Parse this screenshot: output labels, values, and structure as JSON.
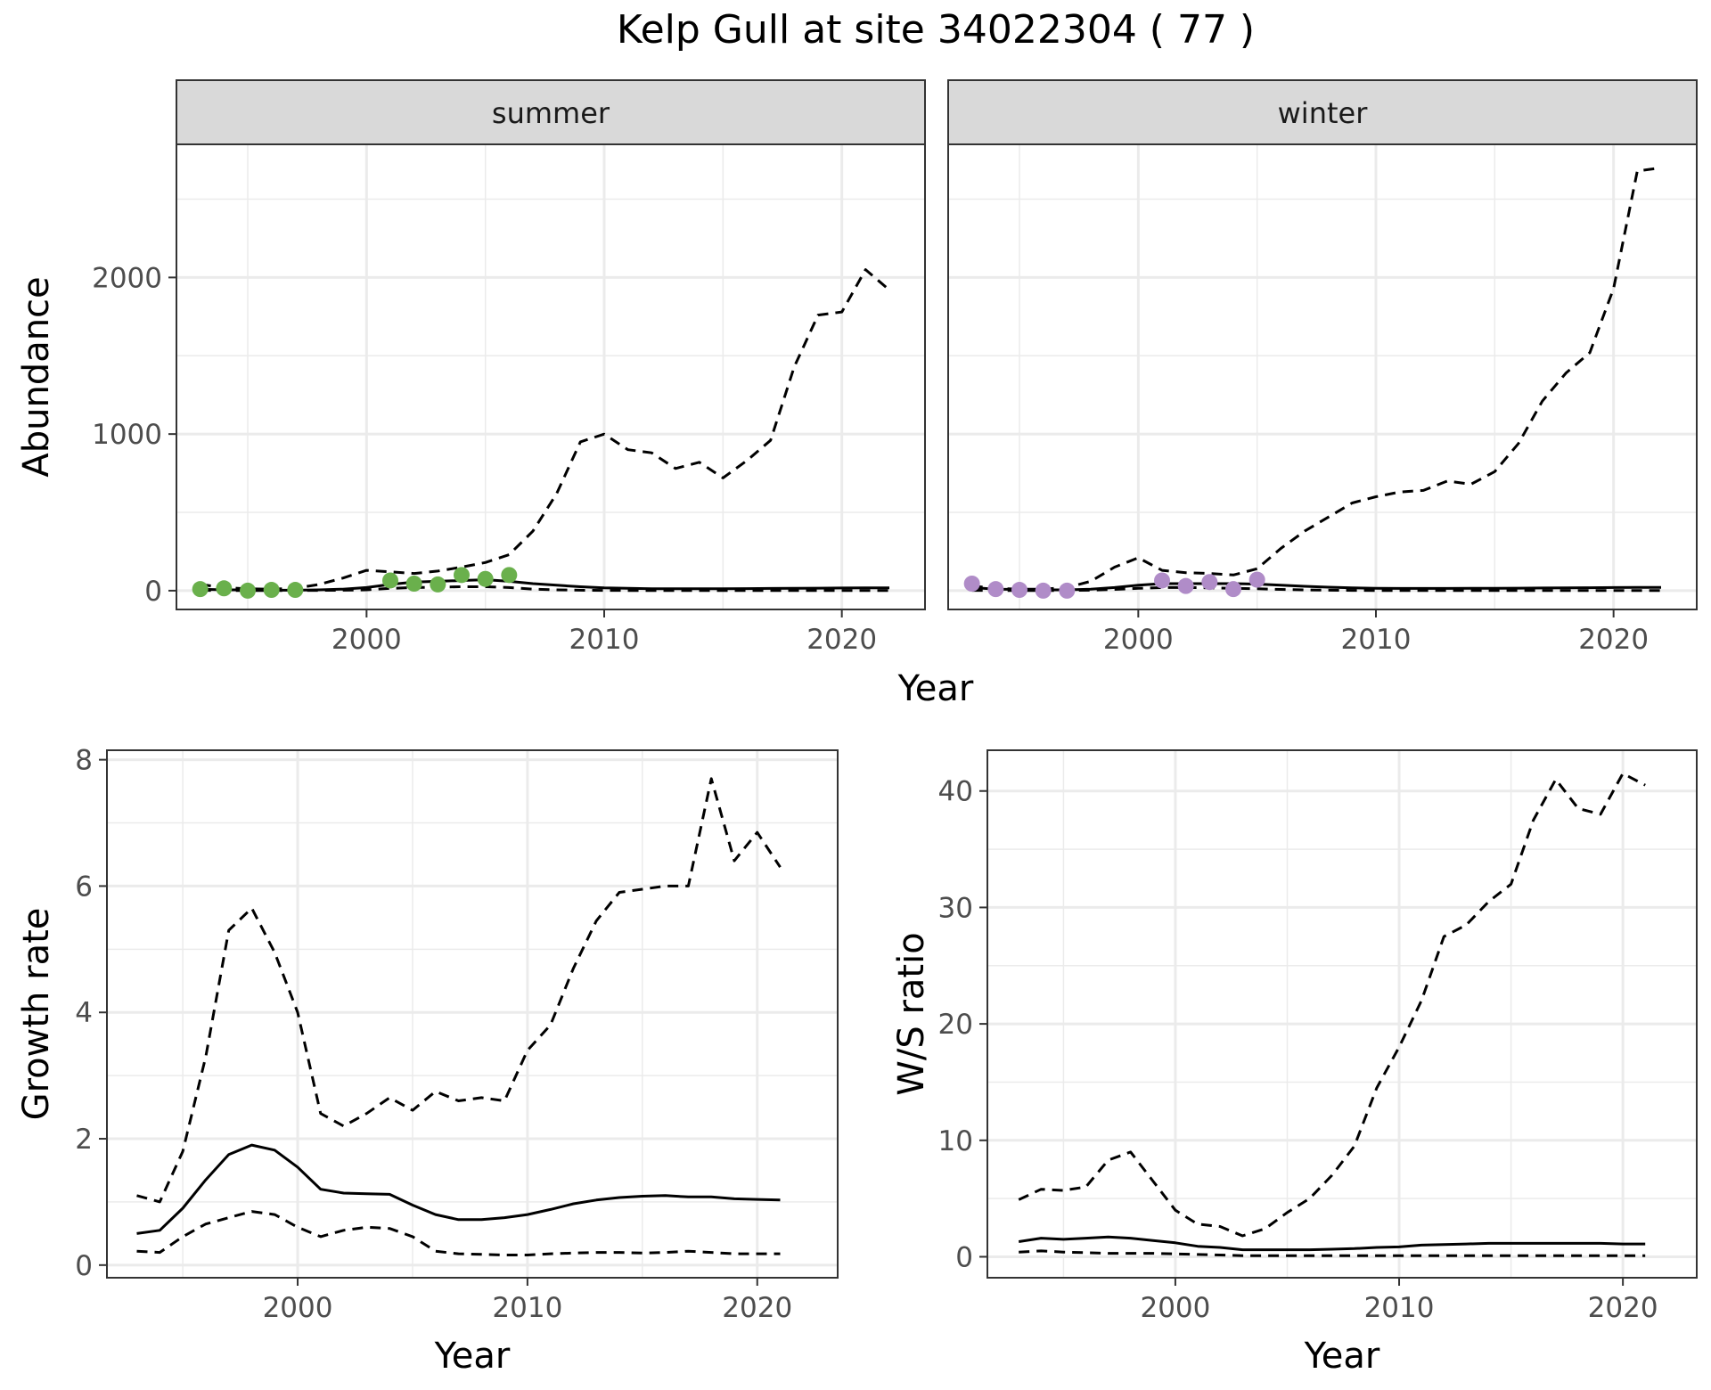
{
  "title": "Kelp Gull at site 34022304 ( 77 )",
  "colors": {
    "summer_points": "#6ab04c",
    "winter_points": "#b08cc8",
    "line": "#000000",
    "strip": "#d9d9d9",
    "grid": "#ebebeb"
  },
  "chart_data": [
    {
      "type": "line",
      "panel": "summer",
      "strip_label": "summer",
      "xlabel": "Year",
      "ylabel": "Abundance",
      "xlim": [
        1992,
        2023.5
      ],
      "ylim": [
        -120,
        2850
      ],
      "xticks": [
        2000,
        2010,
        2020
      ],
      "yticks": [
        0,
        1000,
        2000
      ],
      "grid": true,
      "series": [
        {
          "role": "estimate",
          "style": "solid",
          "x": [
            1993,
            1994,
            1995,
            1996,
            1997,
            1998,
            1999,
            2000,
            2001,
            2002,
            2003,
            2004,
            2005,
            2006,
            2007,
            2008,
            2009,
            2010,
            2011,
            2012,
            2013,
            2014,
            2015,
            2016,
            2017,
            2018,
            2019,
            2020,
            2021,
            2022
          ],
          "values": [
            10,
            5,
            5,
            3,
            3,
            5,
            10,
            20,
            40,
            55,
            60,
            65,
            70,
            60,
            45,
            35,
            25,
            18,
            15,
            12,
            12,
            12,
            12,
            13,
            14,
            15,
            16,
            17,
            18,
            18
          ]
        },
        {
          "role": "upper",
          "style": "dashed",
          "x": [
            1993,
            1994,
            1995,
            1996,
            1997,
            1998,
            1999,
            2000,
            2001,
            2002,
            2003,
            2004,
            2005,
            2006,
            2007,
            2008,
            2009,
            2010,
            2011,
            2012,
            2013,
            2014,
            2015,
            2016,
            2017,
            2018,
            2019,
            2020,
            2021,
            2022
          ],
          "values": [
            40,
            20,
            12,
            10,
            15,
            40,
            80,
            130,
            120,
            110,
            125,
            150,
            180,
            230,
            380,
            620,
            950,
            1000,
            900,
            880,
            780,
            820,
            720,
            830,
            960,
            1430,
            1760,
            1780,
            2050,
            1920
          ]
        },
        {
          "role": "lower",
          "style": "dashed",
          "x": [
            1993,
            1994,
            1995,
            1996,
            1997,
            1998,
            1999,
            2000,
            2001,
            2002,
            2003,
            2004,
            2005,
            2006,
            2007,
            2008,
            2009,
            2010,
            2011,
            2012,
            2013,
            2014,
            2015,
            2016,
            2017,
            2018,
            2019,
            2020,
            2021,
            2022
          ],
          "values": [
            2,
            1,
            1,
            1,
            1,
            2,
            3,
            5,
            15,
            20,
            22,
            25,
            25,
            20,
            10,
            5,
            3,
            2,
            1,
            1,
            1,
            1,
            1,
            1,
            1,
            1,
            1,
            1,
            1,
            1
          ]
        },
        {
          "role": "observed",
          "style": "points",
          "color": "#6ab04c",
          "x": [
            1993,
            1994,
            1995,
            1996,
            1997,
            2001,
            2002,
            2003,
            2004,
            2005,
            2006
          ],
          "values": [
            10,
            15,
            0,
            5,
            5,
            65,
            45,
            40,
            100,
            75,
            100
          ]
        }
      ]
    },
    {
      "type": "line",
      "panel": "winter",
      "strip_label": "winter",
      "xlabel": "Year",
      "ylabel": "Abundance",
      "xlim": [
        1992,
        2023.5
      ],
      "ylim": [
        -120,
        2850
      ],
      "xticks": [
        2000,
        2010,
        2020
      ],
      "yticks": [
        0,
        1000,
        2000
      ],
      "grid": true,
      "series": [
        {
          "role": "estimate",
          "style": "solid",
          "x": [
            1993,
            1994,
            1995,
            1996,
            1997,
            1998,
            1999,
            2000,
            2001,
            2002,
            2003,
            2004,
            2005,
            2006,
            2007,
            2008,
            2009,
            2010,
            2011,
            2012,
            2013,
            2014,
            2015,
            2016,
            2017,
            2018,
            2019,
            2020,
            2021,
            2022
          ],
          "values": [
            20,
            10,
            8,
            5,
            5,
            10,
            20,
            35,
            45,
            45,
            45,
            45,
            42,
            35,
            28,
            22,
            18,
            15,
            14,
            14,
            14,
            15,
            15,
            16,
            17,
            18,
            19,
            20,
            21,
            21
          ]
        },
        {
          "role": "upper",
          "style": "dashed",
          "x": [
            1993,
            1994,
            1995,
            1996,
            1997,
            1998,
            1999,
            2000,
            2001,
            2002,
            2003,
            2004,
            2005,
            2006,
            2007,
            2008,
            2009,
            2010,
            2011,
            2012,
            2013,
            2014,
            2015,
            2016,
            2017,
            2018,
            2019,
            2020,
            2021,
            2022
          ],
          "values": [
            30,
            15,
            10,
            10,
            20,
            60,
            150,
            210,
            130,
            115,
            110,
            100,
            140,
            270,
            380,
            470,
            560,
            600,
            630,
            640,
            700,
            680,
            760,
            940,
            1210,
            1390,
            1520,
            1930,
            2680,
            2700
          ]
        },
        {
          "role": "lower",
          "style": "dashed",
          "x": [
            1993,
            1994,
            1995,
            1996,
            1997,
            1998,
            1999,
            2000,
            2001,
            2002,
            2003,
            2004,
            2005,
            2006,
            2007,
            2008,
            2009,
            2010,
            2011,
            2012,
            2013,
            2014,
            2015,
            2016,
            2017,
            2018,
            2019,
            2020,
            2021,
            2022
          ],
          "values": [
            2,
            1,
            1,
            1,
            1,
            3,
            8,
            15,
            20,
            20,
            18,
            15,
            12,
            8,
            5,
            3,
            2,
            1,
            1,
            1,
            1,
            1,
            1,
            1,
            1,
            1,
            1,
            1,
            1,
            1
          ]
        },
        {
          "role": "observed",
          "style": "points",
          "color": "#b08cc8",
          "x": [
            1993,
            1994,
            1995,
            1996,
            1997,
            2001,
            2002,
            2003,
            2004,
            2005
          ],
          "values": [
            45,
            10,
            5,
            0,
            0,
            65,
            30,
            55,
            10,
            70
          ]
        }
      ]
    },
    {
      "type": "line",
      "panel": "growth",
      "xlabel": "Year",
      "ylabel": "Growth rate",
      "xlim": [
        1991.7,
        2023.5
      ],
      "ylim": [
        -0.2,
        8.15
      ],
      "xticks": [
        2000,
        2010,
        2020
      ],
      "yticks": [
        0,
        2,
        4,
        6,
        8
      ],
      "grid": true,
      "series": [
        {
          "role": "estimate",
          "style": "solid",
          "x": [
            1993,
            1994,
            1995,
            1996,
            1997,
            1998,
            1999,
            2000,
            2001,
            2002,
            2003,
            2004,
            2005,
            2006,
            2007,
            2008,
            2009,
            2010,
            2011,
            2012,
            2013,
            2014,
            2015,
            2016,
            2017,
            2018,
            2019,
            2020,
            2021
          ],
          "values": [
            0.5,
            0.55,
            0.9,
            1.35,
            1.75,
            1.9,
            1.82,
            1.55,
            1.2,
            1.14,
            1.13,
            1.12,
            0.95,
            0.8,
            0.72,
            0.72,
            0.75,
            0.8,
            0.88,
            0.97,
            1.03,
            1.07,
            1.09,
            1.1,
            1.08,
            1.08,
            1.05,
            1.04,
            1.03
          ]
        },
        {
          "role": "upper",
          "style": "dashed",
          "x": [
            1993,
            1994,
            1995,
            1996,
            1997,
            1998,
            1999,
            2000,
            2001,
            2002,
            2003,
            2004,
            2005,
            2006,
            2007,
            2008,
            2009,
            2010,
            2011,
            2012,
            2013,
            2014,
            2015,
            2016,
            2017,
            2018,
            2019,
            2020,
            2021
          ],
          "values": [
            1.1,
            1.0,
            1.8,
            3.3,
            5.3,
            5.65,
            4.95,
            4.0,
            2.4,
            2.2,
            2.4,
            2.65,
            2.45,
            2.75,
            2.6,
            2.65,
            2.6,
            3.4,
            3.8,
            4.7,
            5.45,
            5.9,
            5.95,
            6.0,
            6.0,
            7.7,
            6.4,
            6.85,
            6.3
          ]
        },
        {
          "role": "lower",
          "style": "dashed",
          "x": [
            1993,
            1994,
            1995,
            1996,
            1997,
            1998,
            1999,
            2000,
            2001,
            2002,
            2003,
            2004,
            2005,
            2006,
            2007,
            2008,
            2009,
            2010,
            2011,
            2012,
            2013,
            2014,
            2015,
            2016,
            2017,
            2018,
            2019,
            2020,
            2021
          ],
          "values": [
            0.22,
            0.2,
            0.45,
            0.65,
            0.75,
            0.85,
            0.8,
            0.6,
            0.45,
            0.55,
            0.6,
            0.58,
            0.45,
            0.22,
            0.18,
            0.17,
            0.16,
            0.16,
            0.18,
            0.19,
            0.2,
            0.2,
            0.19,
            0.2,
            0.22,
            0.2,
            0.18,
            0.18,
            0.18
          ]
        }
      ]
    },
    {
      "type": "line",
      "panel": "ratio",
      "xlabel": "Year",
      "ylabel": "W/S ratio",
      "xlim": [
        1991.6,
        2023.3
      ],
      "ylim": [
        -1.8,
        43.5
      ],
      "xticks": [
        2000,
        2010,
        2020
      ],
      "yticks": [
        0,
        10,
        20,
        30,
        40
      ],
      "grid": true,
      "series": [
        {
          "role": "estimate",
          "style": "solid",
          "x": [
            1993,
            1994,
            1995,
            1996,
            1997,
            1998,
            1999,
            2000,
            2001,
            2002,
            2003,
            2004,
            2005,
            2006,
            2007,
            2008,
            2009,
            2010,
            2011,
            2012,
            2013,
            2014,
            2015,
            2016,
            2017,
            2018,
            2019,
            2020,
            2021
          ],
          "values": [
            1.3,
            1.6,
            1.5,
            1.6,
            1.7,
            1.6,
            1.4,
            1.2,
            0.9,
            0.8,
            0.6,
            0.6,
            0.6,
            0.6,
            0.65,
            0.7,
            0.8,
            0.85,
            1.0,
            1.05,
            1.1,
            1.15,
            1.15,
            1.15,
            1.15,
            1.15,
            1.15,
            1.1,
            1.1
          ]
        },
        {
          "role": "upper",
          "style": "dashed",
          "x": [
            1993,
            1994,
            1995,
            1996,
            1997,
            1998,
            1999,
            2000,
            2001,
            2002,
            2003,
            2004,
            2005,
            2006,
            2007,
            2008,
            2009,
            2010,
            2011,
            2012,
            2013,
            2014,
            2015,
            2016,
            2017,
            2018,
            2019,
            2020,
            2021
          ],
          "values": [
            4.9,
            5.8,
            5.7,
            6.0,
            8.3,
            9.0,
            6.5,
            4.0,
            2.8,
            2.6,
            1.8,
            2.4,
            3.8,
            5.0,
            7.0,
            9.5,
            14.5,
            18.0,
            22.0,
            27.5,
            28.5,
            30.5,
            32.0,
            37.5,
            41.0,
            38.5,
            38.0,
            41.5,
            40.5
          ]
        },
        {
          "role": "lower",
          "style": "dashed",
          "x": [
            1993,
            1994,
            1995,
            1996,
            1997,
            1998,
            1999,
            2000,
            2001,
            2002,
            2003,
            2004,
            2005,
            2006,
            2007,
            2008,
            2009,
            2010,
            2011,
            2012,
            2013,
            2014,
            2015,
            2016,
            2017,
            2018,
            2019,
            2020,
            2021
          ],
          "values": [
            0.4,
            0.5,
            0.4,
            0.35,
            0.3,
            0.3,
            0.3,
            0.25,
            0.2,
            0.15,
            0.1,
            0.1,
            0.1,
            0.1,
            0.1,
            0.1,
            0.1,
            0.1,
            0.1,
            0.1,
            0.1,
            0.1,
            0.1,
            0.1,
            0.1,
            0.1,
            0.1,
            0.1,
            0.1
          ]
        }
      ]
    }
  ]
}
